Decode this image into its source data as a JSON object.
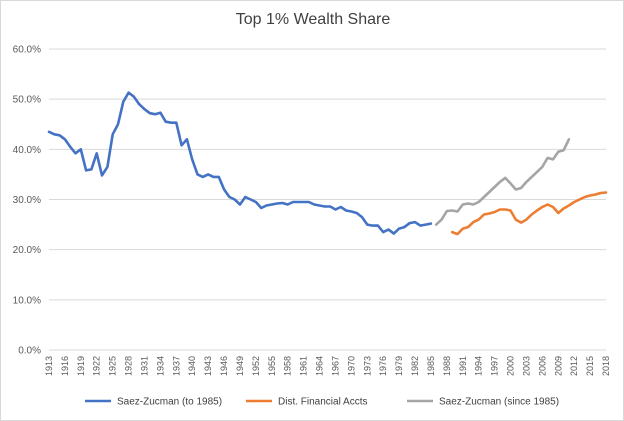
{
  "chart_data": {
    "type": "line",
    "title": "Top 1% Wealth Share",
    "xlabel": "",
    "ylabel": "",
    "ylim": [
      0,
      60
    ],
    "xlim": [
      1913,
      2018
    ],
    "yticks": [
      "0.0%",
      "10.0%",
      "20.0%",
      "30.0%",
      "40.0%",
      "50.0%",
      "60.0%"
    ],
    "xticks": [
      "1913",
      "1916",
      "1919",
      "1922",
      "1925",
      "1928",
      "1931",
      "1934",
      "1937",
      "1940",
      "1943",
      "1946",
      "1949",
      "1952",
      "1955",
      "1958",
      "1961",
      "1964",
      "1967",
      "1970",
      "1973",
      "1976",
      "1979",
      "1982",
      "1985",
      "1988",
      "1991",
      "1994",
      "1997",
      "2000",
      "2003",
      "2006",
      "2009",
      "2012",
      "2015",
      "2018"
    ],
    "grid": "horizontal",
    "legend": "bottom",
    "series": [
      {
        "name": "Saez-Zucman (to 1985)",
        "color": "#4472c4",
        "points": [
          [
            1913,
            43.5
          ],
          [
            1914,
            43.0
          ],
          [
            1915,
            42.8
          ],
          [
            1916,
            42.0
          ],
          [
            1917,
            40.5
          ],
          [
            1918,
            39.2
          ],
          [
            1919,
            40.0
          ],
          [
            1920,
            35.8
          ],
          [
            1921,
            36.0
          ],
          [
            1922,
            39.2
          ],
          [
            1923,
            34.8
          ],
          [
            1924,
            36.5
          ],
          [
            1925,
            43.0
          ],
          [
            1926,
            45.0
          ],
          [
            1927,
            49.5
          ],
          [
            1928,
            51.3
          ],
          [
            1929,
            50.5
          ],
          [
            1930,
            49.0
          ],
          [
            1931,
            48.0
          ],
          [
            1932,
            47.2
          ],
          [
            1933,
            47.0
          ],
          [
            1934,
            47.3
          ],
          [
            1935,
            45.5
          ],
          [
            1936,
            45.3
          ],
          [
            1937,
            45.3
          ],
          [
            1938,
            40.8
          ],
          [
            1939,
            42.0
          ],
          [
            1940,
            38.0
          ],
          [
            1941,
            35.0
          ],
          [
            1942,
            34.5
          ],
          [
            1943,
            35.0
          ],
          [
            1944,
            34.5
          ],
          [
            1945,
            34.5
          ],
          [
            1946,
            32.0
          ],
          [
            1947,
            30.5
          ],
          [
            1948,
            30.0
          ],
          [
            1949,
            29.0
          ],
          [
            1950,
            30.5
          ],
          [
            1951,
            30.0
          ],
          [
            1952,
            29.5
          ],
          [
            1953,
            28.3
          ],
          [
            1954,
            28.8
          ],
          [
            1955,
            29.0
          ],
          [
            1956,
            29.2
          ],
          [
            1957,
            29.3
          ],
          [
            1958,
            29.0
          ],
          [
            1959,
            29.5
          ],
          [
            1960,
            29.5
          ],
          [
            1961,
            29.5
          ],
          [
            1962,
            29.5
          ],
          [
            1963,
            29.0
          ],
          [
            1964,
            28.8
          ],
          [
            1965,
            28.6
          ],
          [
            1966,
            28.6
          ],
          [
            1967,
            28.0
          ],
          [
            1968,
            28.5
          ],
          [
            1969,
            27.8
          ],
          [
            1970,
            27.6
          ],
          [
            1971,
            27.3
          ],
          [
            1972,
            26.5
          ],
          [
            1973,
            25.0
          ],
          [
            1974,
            24.8
          ],
          [
            1975,
            24.8
          ],
          [
            1976,
            23.5
          ],
          [
            1977,
            24.0
          ],
          [
            1978,
            23.2
          ],
          [
            1979,
            24.2
          ],
          [
            1980,
            24.5
          ],
          [
            1981,
            25.3
          ],
          [
            1982,
            25.5
          ],
          [
            1983,
            24.8
          ],
          [
            1984,
            25.0
          ],
          [
            1985,
            25.2
          ]
        ]
      },
      {
        "name": "Dist. Financial Accts",
        "color": "#ed7d31",
        "points": [
          [
            1989,
            23.5
          ],
          [
            1990,
            23.1
          ],
          [
            1991,
            24.2
          ],
          [
            1992,
            24.5
          ],
          [
            1993,
            25.5
          ],
          [
            1994,
            26.0
          ],
          [
            1995,
            27.0
          ],
          [
            1996,
            27.2
          ],
          [
            1997,
            27.5
          ],
          [
            1998,
            28.0
          ],
          [
            1999,
            28.0
          ],
          [
            2000,
            27.8
          ],
          [
            2001,
            26.0
          ],
          [
            2002,
            25.4
          ],
          [
            2003,
            26.0
          ],
          [
            2004,
            27.0
          ],
          [
            2005,
            27.8
          ],
          [
            2006,
            28.5
          ],
          [
            2007,
            29.0
          ],
          [
            2008,
            28.5
          ],
          [
            2009,
            27.3
          ],
          [
            2010,
            28.2
          ],
          [
            2011,
            28.8
          ],
          [
            2012,
            29.5
          ],
          [
            2013,
            30.0
          ],
          [
            2014,
            30.5
          ],
          [
            2015,
            30.8
          ],
          [
            2016,
            31.0
          ],
          [
            2017,
            31.3
          ],
          [
            2018,
            31.4
          ]
        ]
      },
      {
        "name": "Saez-Zucman (since 1985)",
        "color": "#a5a5a5",
        "points": [
          [
            1986,
            25.0
          ],
          [
            1987,
            26.0
          ],
          [
            1988,
            27.7
          ],
          [
            1989,
            27.8
          ],
          [
            1990,
            27.6
          ],
          [
            1991,
            29.0
          ],
          [
            1992,
            29.2
          ],
          [
            1993,
            29.0
          ],
          [
            1994,
            29.5
          ],
          [
            1995,
            30.5
          ],
          [
            1996,
            31.5
          ],
          [
            1997,
            32.5
          ],
          [
            1998,
            33.5
          ],
          [
            1999,
            34.3
          ],
          [
            2000,
            33.2
          ],
          [
            2001,
            32.0
          ],
          [
            2002,
            32.3
          ],
          [
            2003,
            33.5
          ],
          [
            2004,
            34.5
          ],
          [
            2005,
            35.5
          ],
          [
            2006,
            36.5
          ],
          [
            2007,
            38.3
          ],
          [
            2008,
            38.0
          ],
          [
            2009,
            39.5
          ],
          [
            2010,
            39.8
          ],
          [
            2011,
            42.0
          ]
        ]
      }
    ]
  }
}
